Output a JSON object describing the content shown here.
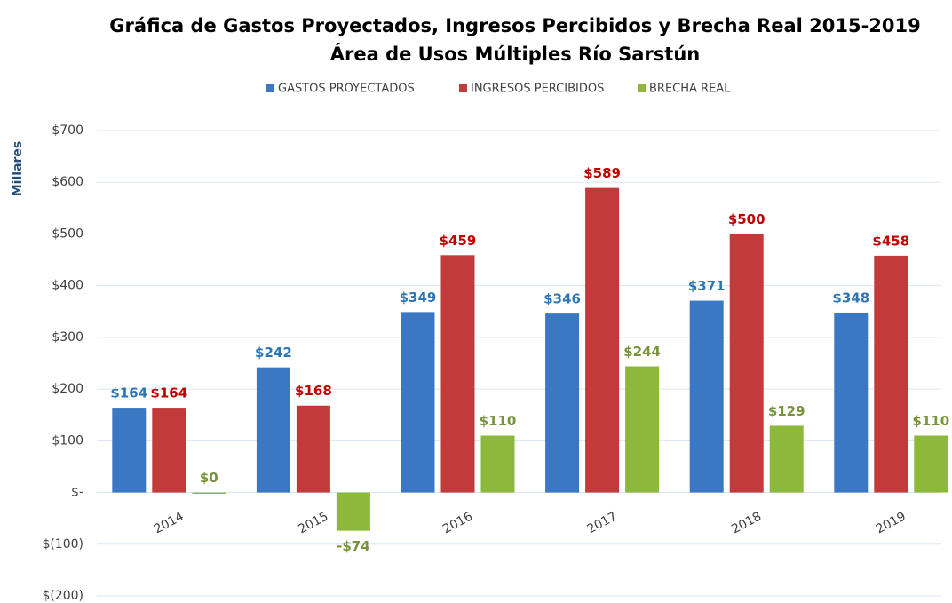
{
  "chart_data": {
    "type": "bar",
    "title": "Gráfica de Gastos Proyectados, Ingresos Percibidos y Brecha Real 2015-2019",
    "subtitle": "Área de Usos Múltiples Río Sarstún",
    "y_label": "Millares",
    "categories": [
      "2014",
      "2015",
      "2016",
      "2017",
      "2018",
      "2019"
    ],
    "series": [
      {
        "name": "GASTOS PROYECTADOS",
        "color": "#3b78c4",
        "label_color": "#2e75b6",
        "values": [
          164,
          242,
          349,
          346,
          371,
          348
        ],
        "value_labels": [
          "$164",
          "$242",
          "$349",
          "$346",
          "$371",
          "$348"
        ]
      },
      {
        "name": "INGRESOS PERCIBIDOS",
        "color": "#c23a3a",
        "label_color": "#c00000",
        "values": [
          164,
          168,
          459,
          589,
          500,
          458
        ],
        "value_labels": [
          "$164",
          "$168",
          "$459",
          "$589",
          "$500",
          "$458"
        ]
      },
      {
        "name": "BRECHA REAL",
        "color": "#8cb83c",
        "label_color": "#77933c",
        "values": [
          0,
          -74,
          110,
          244,
          129,
          110
        ],
        "value_labels": [
          "$0",
          "-$74",
          "$110",
          "$244",
          "$129",
          "$110"
        ]
      }
    ],
    "ylim": [
      -200,
      700
    ],
    "yticks": [
      {
        "value": -200,
        "label": "$(200)"
      },
      {
        "value": -100,
        "label": "$(100)"
      },
      {
        "value": 0,
        "label": "$-"
      },
      {
        "value": 100,
        "label": "$100"
      },
      {
        "value": 200,
        "label": "$200"
      },
      {
        "value": 300,
        "label": "$300"
      },
      {
        "value": 400,
        "label": "$400"
      },
      {
        "value": 500,
        "label": "$500"
      },
      {
        "value": 600,
        "label": "$600"
      },
      {
        "value": 700,
        "label": "$700"
      }
    ],
    "grid": true,
    "legend": "top"
  }
}
